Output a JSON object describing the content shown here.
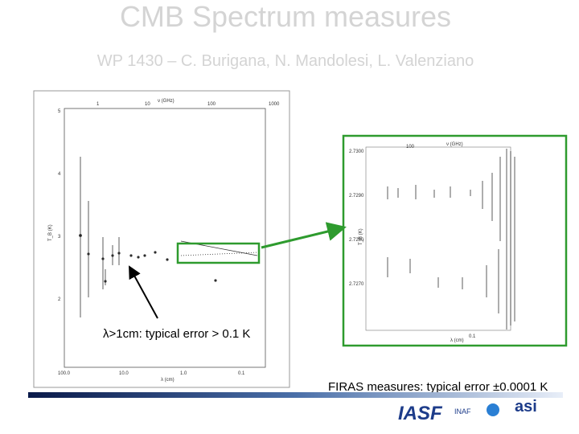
{
  "title": "CMB Spectrum measures",
  "subtitle": "WP 1430 – C. Burigana, N. Mandolesi, L. Valenziano",
  "left_plot": {
    "top_axis_label": "ν (GHz)",
    "top_ticks": [
      "1",
      "10",
      "100",
      "1000"
    ],
    "y_axis_label": "T_B (K)",
    "y_ticks": [
      "5",
      "4",
      "3",
      "2"
    ],
    "bottom_axis_label": "λ (cm)",
    "bottom_ticks": [
      "100.0",
      "10.0",
      "1.0",
      "0.1"
    ]
  },
  "right_plot": {
    "top_axis_label": "ν (GHz)",
    "top_ticks": [
      "100"
    ],
    "y_axis_label": "T_B (K)",
    "y_ticks": [
      "2.7300",
      "2.7290",
      "2.7280",
      "2.7270"
    ],
    "bottom_axis_label": "λ (cm)",
    "bottom_ticks": [
      "0.1"
    ]
  },
  "annotations": {
    "low_freq": "λ>1cm: typical error > 0.1 K",
    "firas": "FIRAS measures: typical error ±0.0001 K"
  },
  "logos": [
    "IASF",
    "INAF",
    "asi"
  ]
}
